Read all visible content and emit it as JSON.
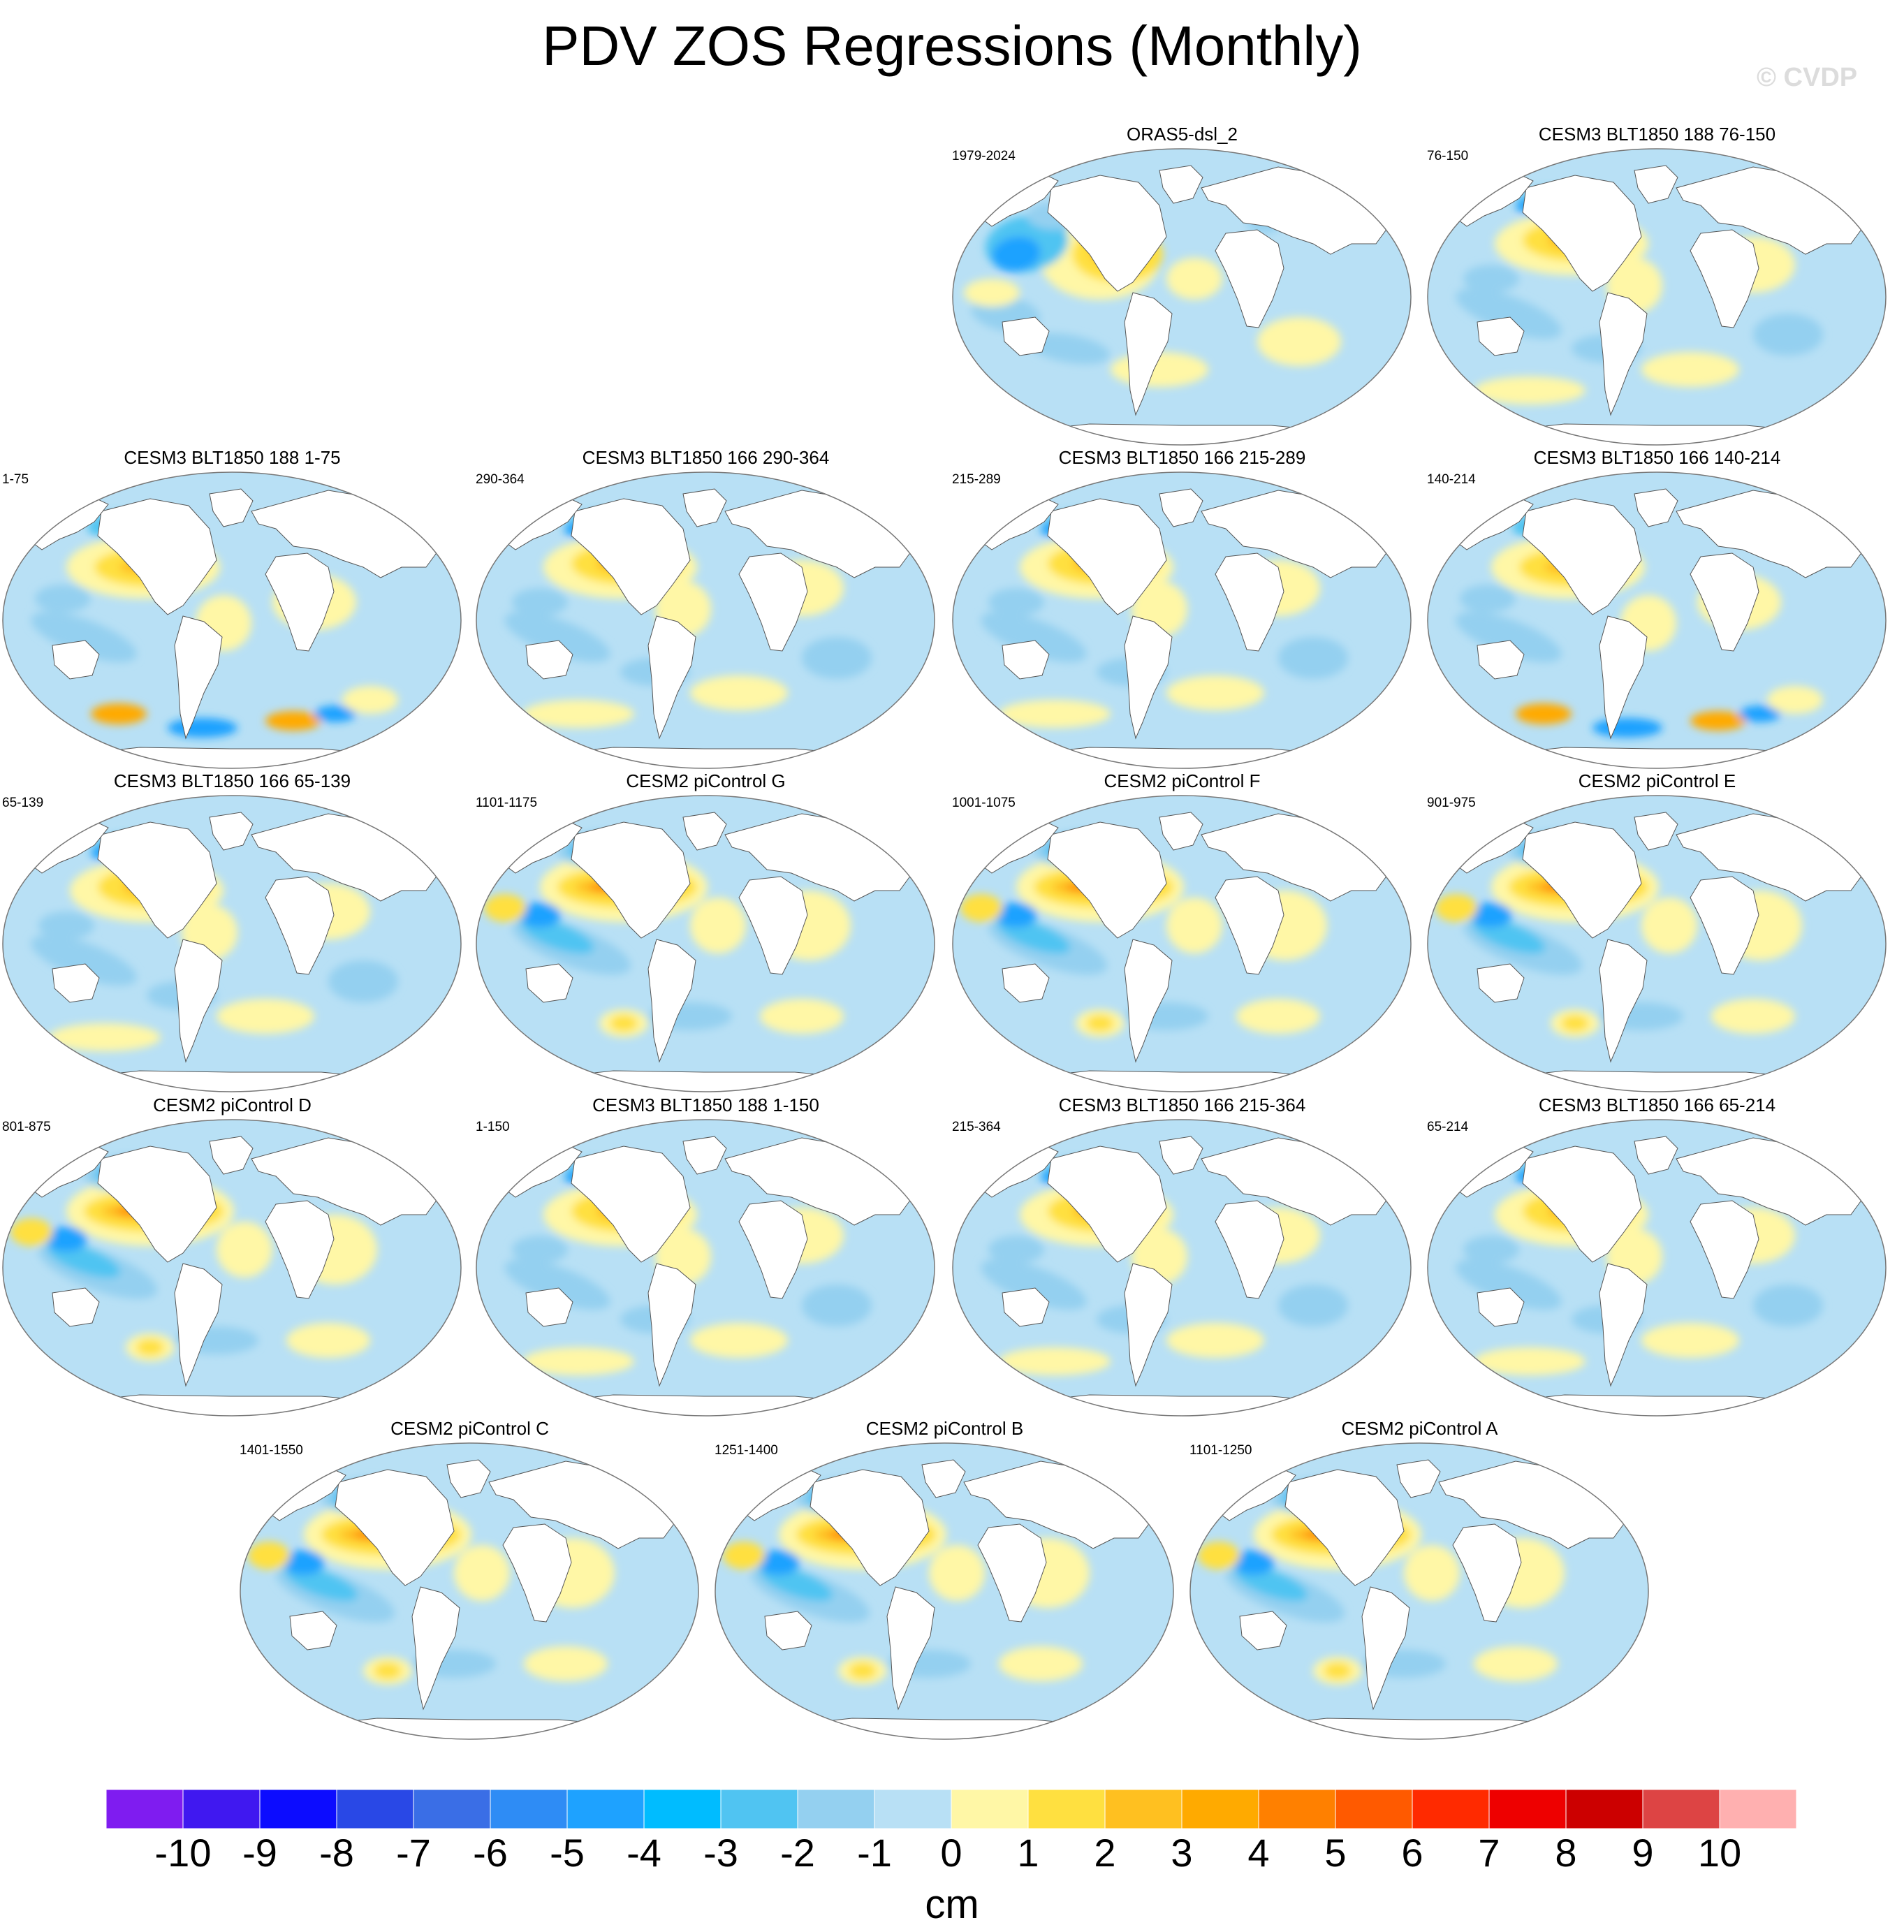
{
  "title": "PDV ZOS Regressions (Monthly)",
  "watermark": "© CVDP",
  "chart_data": {
    "type": "heatmap",
    "description_kind": "multi-panel global map regressions",
    "projection": "robinson-like ellipse",
    "panels": [
      {
        "title": "ORAS5-dsl_2",
        "period": "1979-2024",
        "variant": 0
      },
      {
        "title": "CESM3 BLT1850 188 76-150",
        "period": "76-150",
        "variant": 1
      },
      {
        "title": "CESM3 BLT1850 188 1-75",
        "period": "1-75",
        "variant": 2
      },
      {
        "title": "CESM3 BLT1850 166 290-364",
        "period": "290-364",
        "variant": 1
      },
      {
        "title": "CESM3 BLT1850 166 215-289",
        "period": "215-289",
        "variant": 1
      },
      {
        "title": "CESM3 BLT1850 166 140-214",
        "period": "140-214",
        "variant": 2
      },
      {
        "title": "CESM3 BLT1850 166 65-139",
        "period": "65-139",
        "variant": 1
      },
      {
        "title": "CESM2 piControl G",
        "period": "1101-1175",
        "variant": 3
      },
      {
        "title": "CESM2 piControl F",
        "period": "1001-1075",
        "variant": 3
      },
      {
        "title": "CESM2 piControl E",
        "period": "901-975",
        "variant": 3
      },
      {
        "title": "CESM2 piControl D",
        "period": "801-875",
        "variant": 3
      },
      {
        "title": "CESM3 BLT1850 188 1-150",
        "period": "1-150",
        "variant": 1
      },
      {
        "title": "CESM3 BLT1850 166 215-364",
        "period": "215-364",
        "variant": 1
      },
      {
        "title": "CESM3 BLT1850 166 65-214",
        "period": "65-214",
        "variant": 1
      },
      {
        "title": "CESM2 piControl C",
        "period": "1401-1550",
        "variant": 3
      },
      {
        "title": "CESM2 piControl B",
        "period": "1251-1400",
        "variant": 3
      },
      {
        "title": "CESM2 piControl A",
        "period": "1101-1250",
        "variant": 3
      }
    ],
    "colorbar": {
      "labels": [
        "-10",
        "-9",
        "-8",
        "-7",
        "-6",
        "-5",
        "-4",
        "-3",
        "-2",
        "-1",
        "0",
        "1",
        "2",
        "3",
        "4",
        "5",
        "6",
        "7",
        "8",
        "9",
        "10"
      ],
      "colors": [
        "#7f1cf0",
        "#4018f0",
        "#0c0cff",
        "#2948e6",
        "#3a6ee6",
        "#2e8cf5",
        "#1ea2ff",
        "#00bcff",
        "#50c4f2",
        "#94d0f0",
        "#b8e0f5",
        "#fff7a6",
        "#ffe040",
        "#ffc020",
        "#ffaa00",
        "#ff8000",
        "#ff5a00",
        "#ff2a00",
        "#ee0000",
        "#cc0000",
        "#dd4444",
        "#ffb0b0"
      ],
      "units": "cm"
    }
  }
}
